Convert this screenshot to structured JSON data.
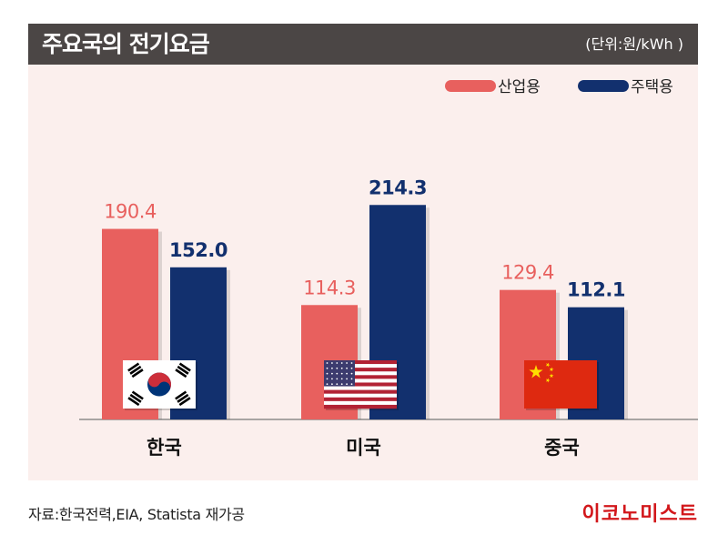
{
  "header": {
    "title": "주요국의 전기요금",
    "unit": "(단위:원/kWh )"
  },
  "chart_data": {
    "type": "bar",
    "categories": [
      "한국",
      "미국",
      "중국"
    ],
    "series": [
      {
        "name": "산업용",
        "values": [
          190.4,
          114.3,
          129.4
        ],
        "color": "#e8605e",
        "value_labels": [
          "190.4",
          "114.3",
          "129.4"
        ]
      },
      {
        "name": "주택용",
        "values": [
          152.0,
          214.3,
          112.1
        ],
        "color": "#12306e",
        "value_labels": [
          "152.0",
          "214.3",
          "112.1"
        ]
      }
    ],
    "category_icons": [
      "south-korea-flag",
      "usa-flag",
      "china-flag"
    ],
    "legend_position": "top-right",
    "grid": false,
    "ylim": [
      0,
      230
    ],
    "industrial_label_color": "#e8605e",
    "residential_label_color": "#12306e"
  },
  "footer": {
    "source": "자료:한국전력,EIA, Statista 재가공",
    "brand": "이코노미스트"
  }
}
